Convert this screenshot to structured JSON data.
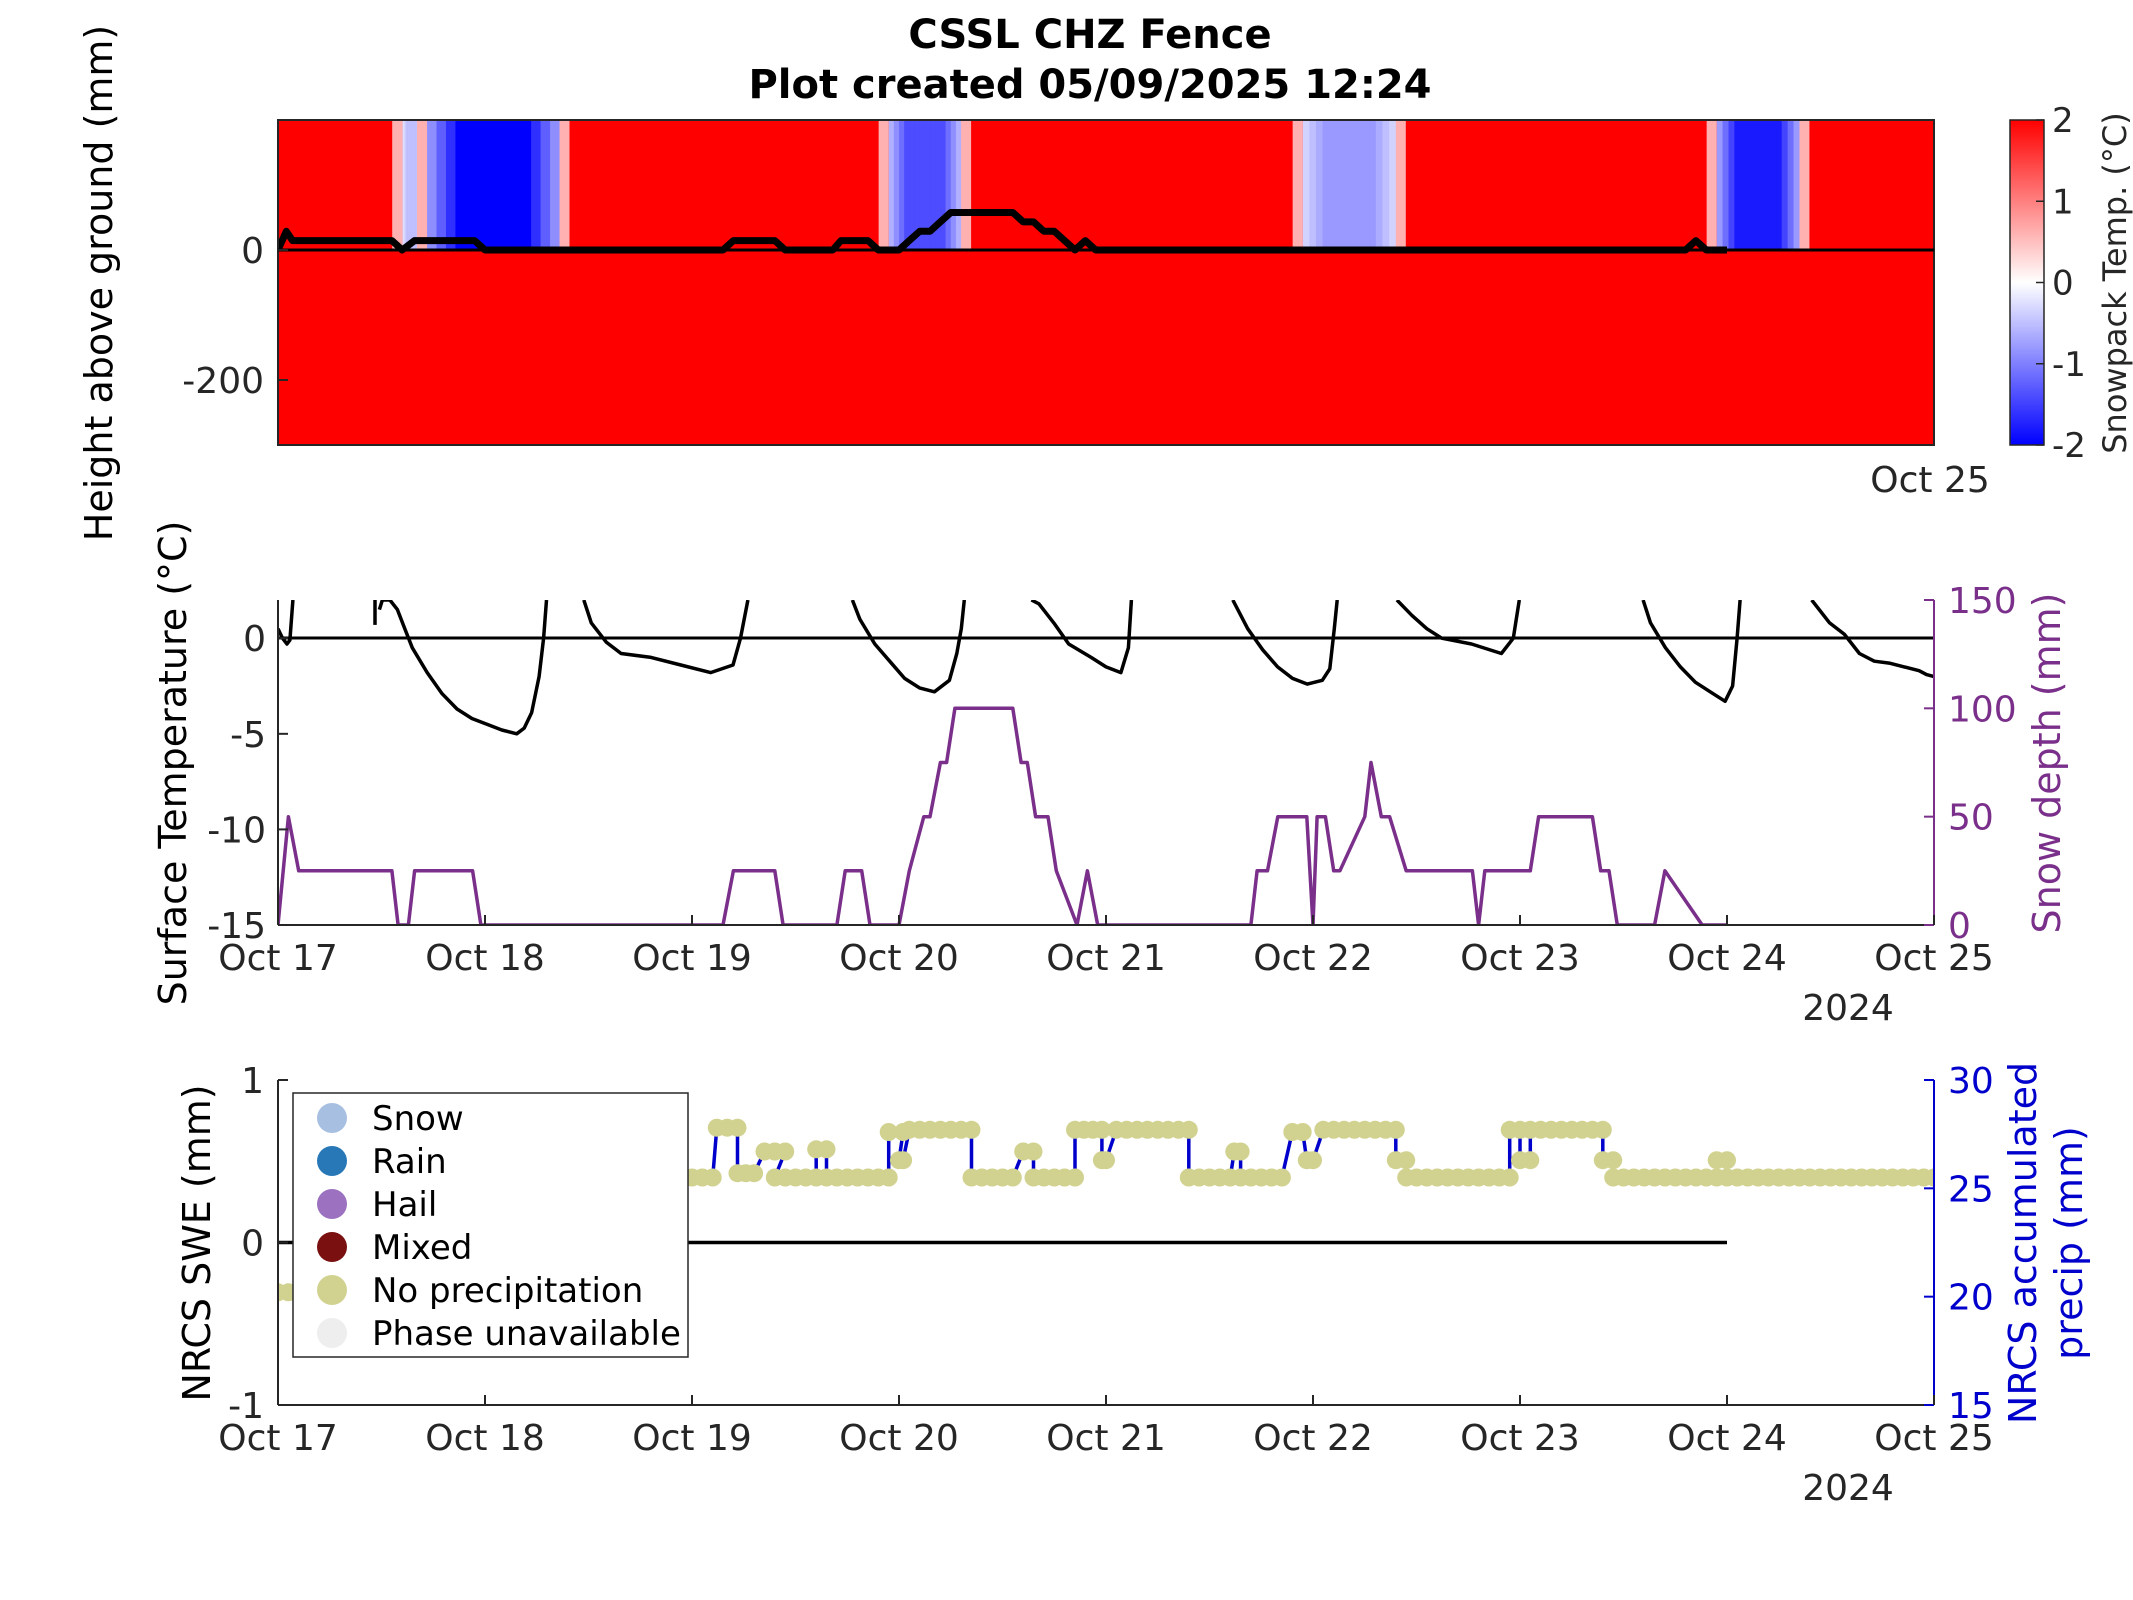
{
  "title": "CSSL CHZ Fence",
  "subtitle": "Plot created 05/09/2025 12:24",
  "colors": {
    "warm": "#ff0000",
    "cold": "#0000ff",
    "neutral": "#ffffff",
    "snow_depth": "#7a2f8a",
    "precip": "#0000cc",
    "dots": "#d2d290",
    "black": "#000000"
  },
  "chart_data": [
    {
      "type": "heatmap",
      "ylabel": "Height above ground (mm)",
      "yticks": [
        0,
        -200
      ],
      "ylim": [
        -300,
        200
      ],
      "x_end_label": "Oct 25",
      "xlim": [
        "2024-10-17",
        "2024-10-25"
      ],
      "colorbar": {
        "label": "Snowpack Temp. (°C)",
        "ticks": [
          "2",
          "1",
          "0",
          "-1",
          "-2"
        ],
        "range": [
          -2,
          2
        ]
      },
      "cold_intervals": [
        {
          "start": 0.6,
          "end": 0.69,
          "min_temp": -0.5
        },
        {
          "start": 0.72,
          "end": 1.36,
          "min_temp": -2.0
        },
        {
          "start": 2.95,
          "end": 3.3,
          "min_temp": -1.4
        },
        {
          "start": 4.95,
          "end": 5.4,
          "min_temp": -0.8
        },
        {
          "start": 6.95,
          "end": 7.35,
          "min_temp": -1.8
        }
      ],
      "snow_depth_line": {
        "x": [
          0,
          0.04,
          0.07,
          0.55,
          0.6,
          0.66,
          0.7,
          0.95,
          1.0,
          2.15,
          2.2,
          2.4,
          2.45,
          2.68,
          2.72,
          2.85,
          2.9,
          3.0,
          3.05,
          3.1,
          3.15,
          3.2,
          3.25,
          3.55,
          3.6,
          3.65,
          3.7,
          3.75,
          3.85,
          3.9,
          3.95,
          4.0,
          6.8,
          6.85,
          6.9,
          7.0
        ],
        "y": [
          0,
          50,
          25,
          25,
          0,
          25,
          25,
          25,
          0,
          0,
          25,
          25,
          0,
          0,
          25,
          25,
          0,
          0,
          25,
          50,
          50,
          75,
          100,
          100,
          75,
          75,
          50,
          50,
          0,
          25,
          0,
          0,
          0,
          25,
          0,
          0
        ]
      }
    },
    {
      "type": "line",
      "ylabel": "Surface Temperature (°C)",
      "y2label": "Snow depth (mm)",
      "ylim": [
        -15,
        2
      ],
      "y2lim": [
        0,
        150
      ],
      "yticks": [
        0,
        -5,
        -10,
        -15
      ],
      "y2ticks": [
        150,
        100,
        50,
        0
      ],
      "xticks": [
        "Oct 17",
        "Oct 18",
        "Oct 19",
        "Oct 20",
        "Oct 21",
        "Oct 22",
        "Oct 23",
        "Oct 24",
        "Oct 25"
      ],
      "year_label": "2024",
      "surface_temp": {
        "segments": [
          {
            "x": [
              0,
              0.03,
              0.06,
              0.08,
              0.1
            ],
            "y": [
              0.5,
              0,
              -0.3,
              -0.1,
              2
            ]
          },
          {
            "x": [
              0.65,
              0.65
            ],
            "y": [
              2,
              0.7
            ]
          },
          {
            "x": [
              0.68,
              0.7
            ],
            "y": [
              1.5,
              2
            ]
          },
          {
            "x": [
              0.7,
              0.75,
              0.8,
              0.85,
              0.9,
              1.0,
              1.1,
              1.2,
              1.3,
              1.4,
              1.5,
              1.6,
              1.65,
              1.7,
              1.75,
              1.78,
              1.8
            ],
            "y": [
              2,
              2,
              1.5,
              0.5,
              -0.5,
              -1.8,
              -2.9,
              -3.7,
              -4.2,
              -4.5,
              -4.8,
              -5.0,
              -4.7,
              -3.9,
              -2.0,
              0,
              2
            ]
          },
          {
            "x": [
              2.05,
              2.1,
              2.2,
              2.3,
              2.5,
              2.7,
              2.9,
              3.05,
              3.1,
              3.15
            ],
            "y": [
              2,
              0.8,
              -0.2,
              -0.8,
              -1.0,
              -1.4,
              -1.8,
              -1.4,
              0,
              2
            ]
          },
          {
            "x": [
              3.85,
              3.9,
              4.0,
              4.1,
              4.2,
              4.3,
              4.4,
              4.5,
              4.55,
              4.58,
              4.6
            ],
            "y": [
              2,
              1.0,
              -0.3,
              -1.2,
              -2.1,
              -2.6,
              -2.8,
              -2.2,
              -0.8,
              0.5,
              2
            ]
          },
          {
            "x": [
              5.05,
              5.1,
              5.2,
              5.3,
              5.45,
              5.55,
              5.65,
              5.7,
              5.72
            ],
            "y": [
              2,
              1.8,
              0.8,
              -0.3,
              -1.0,
              -1.5,
              -1.8,
              -0.5,
              2
            ]
          },
          {
            "x": [
              6.4,
              6.5,
              6.6,
              6.7,
              6.8,
              6.9,
              7.0,
              7.05,
              7.08,
              7.1
            ],
            "y": [
              2,
              0.5,
              -0.6,
              -1.5,
              -2.1,
              -2.4,
              -2.2,
              -1.6,
              0.5,
              2
            ]
          },
          {
            "x": [
              7.5,
              7.6,
              7.7,
              7.8,
              8.0,
              8.2,
              8.28,
              8.32
            ],
            "y": [
              2,
              1.2,
              0.5,
              0,
              -0.3,
              -0.8,
              0,
              2
            ]
          },
          {
            "x": [
              9.15,
              9.2,
              9.3,
              9.4,
              9.5,
              9.6,
              9.7,
              9.75,
              9.78,
              9.8
            ],
            "y": [
              2,
              0.8,
              -0.5,
              -1.5,
              -2.3,
              -2.8,
              -3.3,
              -2.5,
              0,
              2
            ]
          },
          {
            "x": [
              10.28,
              10.4,
              10.5,
              10.6,
              10.7,
              10.8,
              10.9,
              11.0,
              11.05,
              11.1
            ],
            "y": [
              2,
              0.8,
              0.2,
              -0.8,
              -1.2,
              -1.3,
              -1.5,
              -1.7,
              -1.9,
              -2.0
            ]
          }
        ],
        "x_scale_days": [
          0,
          8
        ],
        "x_scale_raw": [
          0,
          11.1
        ]
      },
      "snow_depth": {
        "x": [
          0,
          0.05,
          0.1,
          0.55,
          0.58,
          0.63,
          0.66,
          0.94,
          0.98,
          2.15,
          2.2,
          2.4,
          2.44,
          2.7,
          2.74,
          2.82,
          2.86,
          3.0,
          3.05,
          3.12,
          3.15,
          3.2,
          3.23,
          3.27,
          3.3,
          3.55,
          3.59,
          3.62,
          3.66,
          3.72,
          3.76,
          3.86,
          3.91,
          3.96,
          4.0,
          4.7,
          4.73,
          4.78,
          4.83,
          4.97,
          5.0,
          5.02,
          5.06,
          5.1,
          5.13,
          5.25,
          5.28,
          5.33,
          5.37,
          5.45,
          5.51,
          5.77,
          5.8,
          5.83,
          5.87,
          6.05,
          6.09,
          6.17,
          6.22,
          6.35,
          6.39,
          6.43,
          6.47,
          6.52,
          6.55,
          6.65,
          6.7,
          6.88,
          6.93,
          7.0
        ],
        "y": [
          0,
          50,
          25,
          25,
          0,
          0,
          25,
          25,
          0,
          0,
          25,
          25,
          0,
          0,
          25,
          25,
          0,
          0,
          25,
          50,
          50,
          75,
          75,
          100,
          100,
          100,
          75,
          75,
          50,
          50,
          25,
          0,
          25,
          0,
          0,
          0,
          25,
          25,
          50,
          50,
          0,
          50,
          50,
          25,
          25,
          50,
          75,
          50,
          50,
          25,
          25,
          25,
          0,
          25,
          25,
          25,
          50,
          50,
          50,
          50,
          25,
          25,
          0,
          0,
          0,
          0,
          25,
          0,
          0,
          0
        ]
      }
    },
    {
      "type": "scatter",
      "ylabel": "NRCS SWE (mm)",
      "y2label_line1": "NRCS accumulated",
      "y2label_line2": "precip (mm)",
      "ylim": [
        -1,
        1
      ],
      "y2lim": [
        15,
        30
      ],
      "yticks": [
        "1",
        "0",
        "-1"
      ],
      "y2ticks": [
        "30",
        "25",
        "20",
        "15"
      ],
      "xticks": [
        "Oct 17",
        "Oct 18",
        "Oct 19",
        "Oct 20",
        "Oct 21",
        "Oct 22",
        "Oct 23",
        "Oct 24",
        "Oct 25"
      ],
      "year_label": "2024",
      "swe_line": {
        "x": [
          0,
          7
        ],
        "y": [
          0,
          0
        ]
      },
      "legend": [
        {
          "label": "Snow",
          "color": "#a7bfe0"
        },
        {
          "label": "Rain",
          "color": "#2878b8"
        },
        {
          "label": "Hail",
          "color": "#9c72c0"
        },
        {
          "label": "Mixed",
          "color": "#7a1010"
        },
        {
          "label": "No precipitation",
          "color": "#d2d290"
        },
        {
          "label": "Phase unavailable",
          "color": "#eeeeee"
        }
      ],
      "precip_levels": [
        {
          "x_start": 0.0,
          "x_end": 0.05,
          "y": 20.2
        },
        {
          "x_start": 2.0,
          "x_end": 2.1,
          "y": 25.5
        },
        {
          "x_start": 2.12,
          "x_end": 2.22,
          "y": 27.8
        },
        {
          "x_start": 2.22,
          "x_end": 2.3,
          "y": 25.7
        },
        {
          "x_start": 2.35,
          "x_end": 2.45,
          "y": 26.7
        },
        {
          "x_start": 2.4,
          "x_end": 2.6,
          "y": 25.5
        },
        {
          "x_start": 2.6,
          "x_end": 2.65,
          "y": 26.8
        },
        {
          "x_start": 2.65,
          "x_end": 2.95,
          "y": 25.5
        },
        {
          "x_start": 2.95,
          "x_end": 3.02,
          "y": 27.6
        },
        {
          "x_start": 3.0,
          "x_end": 3.02,
          "y": 26.3
        },
        {
          "x_start": 3.05,
          "x_end": 3.35,
          "y": 27.7
        },
        {
          "x_start": 3.35,
          "x_end": 3.55,
          "y": 25.5
        },
        {
          "x_start": 3.6,
          "x_end": 3.65,
          "y": 26.7
        },
        {
          "x_start": 3.65,
          "x_end": 3.85,
          "y": 25.5
        },
        {
          "x_start": 3.85,
          "x_end": 3.98,
          "y": 27.7
        },
        {
          "x_start": 3.98,
          "x_end": 4.0,
          "y": 26.3
        },
        {
          "x_start": 4.05,
          "x_end": 4.4,
          "y": 27.7
        },
        {
          "x_start": 4.4,
          "x_end": 4.6,
          "y": 25.5
        },
        {
          "x_start": 4.62,
          "x_end": 4.65,
          "y": 26.7
        },
        {
          "x_start": 4.65,
          "x_end": 4.85,
          "y": 25.5
        },
        {
          "x_start": 4.9,
          "x_end": 4.95,
          "y": 27.6
        },
        {
          "x_start": 4.97,
          "x_end": 5.0,
          "y": 26.3
        },
        {
          "x_start": 5.05,
          "x_end": 5.4,
          "y": 27.7
        },
        {
          "x_start": 5.4,
          "x_end": 5.45,
          "y": 26.3
        },
        {
          "x_start": 5.45,
          "x_end": 5.95,
          "y": 25.5
        },
        {
          "x_start": 5.95,
          "x_end": 6.0,
          "y": 27.7
        },
        {
          "x_start": 6.0,
          "x_end": 6.05,
          "y": 26.3
        },
        {
          "x_start": 6.05,
          "x_end": 6.4,
          "y": 27.7
        },
        {
          "x_start": 6.4,
          "x_end": 6.45,
          "y": 26.3
        },
        {
          "x_start": 6.45,
          "x_end": 6.95,
          "y": 25.5
        },
        {
          "x_start": 6.95,
          "x_end": 7.0,
          "y": 26.3
        },
        {
          "x_start": 7.0,
          "x_end": 8.0,
          "y": 25.5
        }
      ]
    }
  ]
}
